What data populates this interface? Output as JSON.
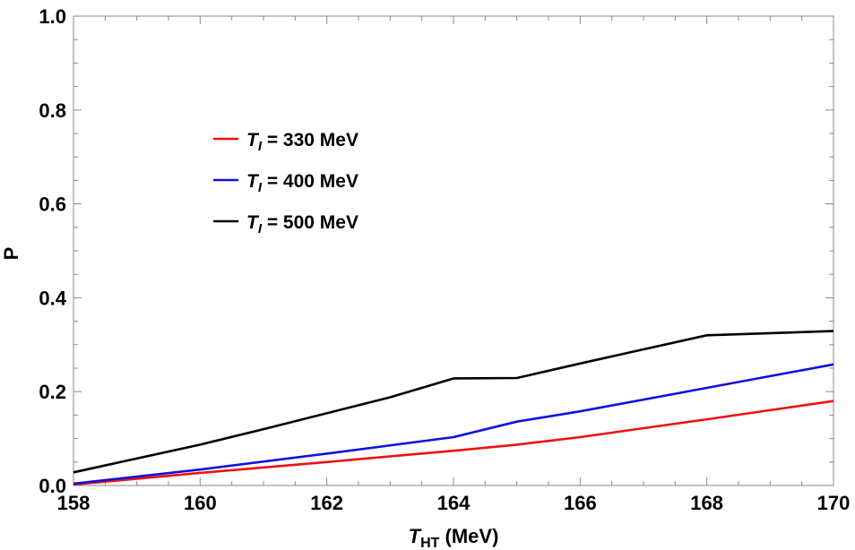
{
  "chart_data": {
    "type": "line",
    "xlabel": {
      "main": "T",
      "sub": "HT",
      "unit": " (MeV)"
    },
    "ylabel": "P",
    "xlim": [
      158,
      170
    ],
    "ylim": [
      0,
      1
    ],
    "x_ticks": [
      "158",
      "160",
      "162",
      "164",
      "166",
      "168",
      "170"
    ],
    "y_ticks": [
      "0.0",
      "0.2",
      "0.4",
      "0.6",
      "0.8",
      "1.0"
    ],
    "grid": false,
    "legend_position": "upper-left",
    "series": [
      {
        "name": "330 MeV",
        "label": {
          "main": "T",
          "sub": "I",
          "rest": " = 330 MeV"
        },
        "color": "#ee1111",
        "points": [
          [
            158,
            0.002
          ],
          [
            160,
            0.027
          ],
          [
            162,
            0.05
          ],
          [
            164,
            0.074
          ],
          [
            165,
            0.087
          ],
          [
            166,
            0.103
          ],
          [
            168,
            0.141
          ],
          [
            170,
            0.18
          ]
        ]
      },
      {
        "name": "400 MeV",
        "label": {
          "main": "T",
          "sub": "I",
          "rest": " = 400 MeV"
        },
        "color": "#1111dd",
        "points": [
          [
            158,
            0.004
          ],
          [
            160,
            0.034
          ],
          [
            162,
            0.068
          ],
          [
            164,
            0.103
          ],
          [
            165,
            0.136
          ],
          [
            166,
            0.158
          ],
          [
            168,
            0.208
          ],
          [
            170,
            0.258
          ]
        ]
      },
      {
        "name": "500 MeV",
        "label": {
          "main": "T",
          "sub": "I",
          "rest": " = 500 MeV"
        },
        "color": "#000000",
        "points": [
          [
            158,
            0.028
          ],
          [
            160,
            0.087
          ],
          [
            161,
            0.12
          ],
          [
            163,
            0.188
          ],
          [
            164,
            0.228
          ],
          [
            165,
            0.229
          ],
          [
            166,
            0.26
          ],
          [
            167,
            0.29
          ],
          [
            168,
            0.32
          ],
          [
            170,
            0.329
          ]
        ]
      }
    ]
  }
}
